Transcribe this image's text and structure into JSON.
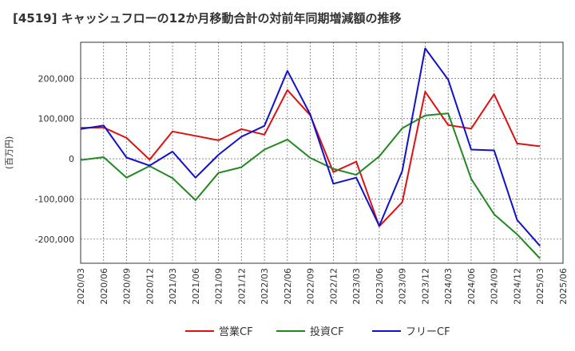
{
  "chart_data": {
    "type": "line",
    "title": "[4519]  キャッシュフローの12か月移動合計の対前年同期増減額の推移",
    "ylabel": "(百万円)",
    "xlabel": "",
    "ylim": [
      -260000,
      290000
    ],
    "yticks": [
      200000,
      100000,
      0,
      -100000,
      -200000
    ],
    "ytick_labels": [
      "200,000",
      "100,000",
      "0",
      "-100,000",
      "-200,000"
    ],
    "grid": true,
    "legend_position": "bottom",
    "x": [
      "2020/03",
      "2020/06",
      "2020/09",
      "2020/12",
      "2021/03",
      "2021/06",
      "2021/09",
      "2021/12",
      "2022/03",
      "2022/06",
      "2022/09",
      "2022/12",
      "2023/03",
      "2023/06",
      "2023/09",
      "2023/12",
      "2024/03",
      "2024/06",
      "2024/09",
      "2024/12",
      "2025/03",
      "2025/06"
    ],
    "series": [
      {
        "name": "営業CF",
        "color": "#dd1111",
        "values": [
          77000,
          78000,
          52000,
          -2000,
          68000,
          57000,
          46000,
          74000,
          60000,
          171000,
          108000,
          -33000,
          -7000,
          -168000,
          -108000,
          167000,
          84000,
          75000,
          161000,
          38000,
          31000,
          null
        ]
      },
      {
        "name": "投資CF",
        "color": "#228822",
        "values": [
          -3000,
          4000,
          -47000,
          -18000,
          -48000,
          -103000,
          -35000,
          -21000,
          23000,
          48000,
          2000,
          -25000,
          -40000,
          6000,
          76000,
          108000,
          113000,
          -50000,
          -138000,
          -188000,
          -248000,
          null
        ]
      },
      {
        "name": "フリーCF",
        "color": "#1111cc",
        "values": [
          74000,
          83000,
          3000,
          -17000,
          18000,
          -47000,
          10000,
          55000,
          82000,
          219000,
          110000,
          -62000,
          -47000,
          -167000,
          -30000,
          275000,
          197000,
          23000,
          21000,
          -152000,
          -217000,
          null
        ]
      }
    ]
  }
}
